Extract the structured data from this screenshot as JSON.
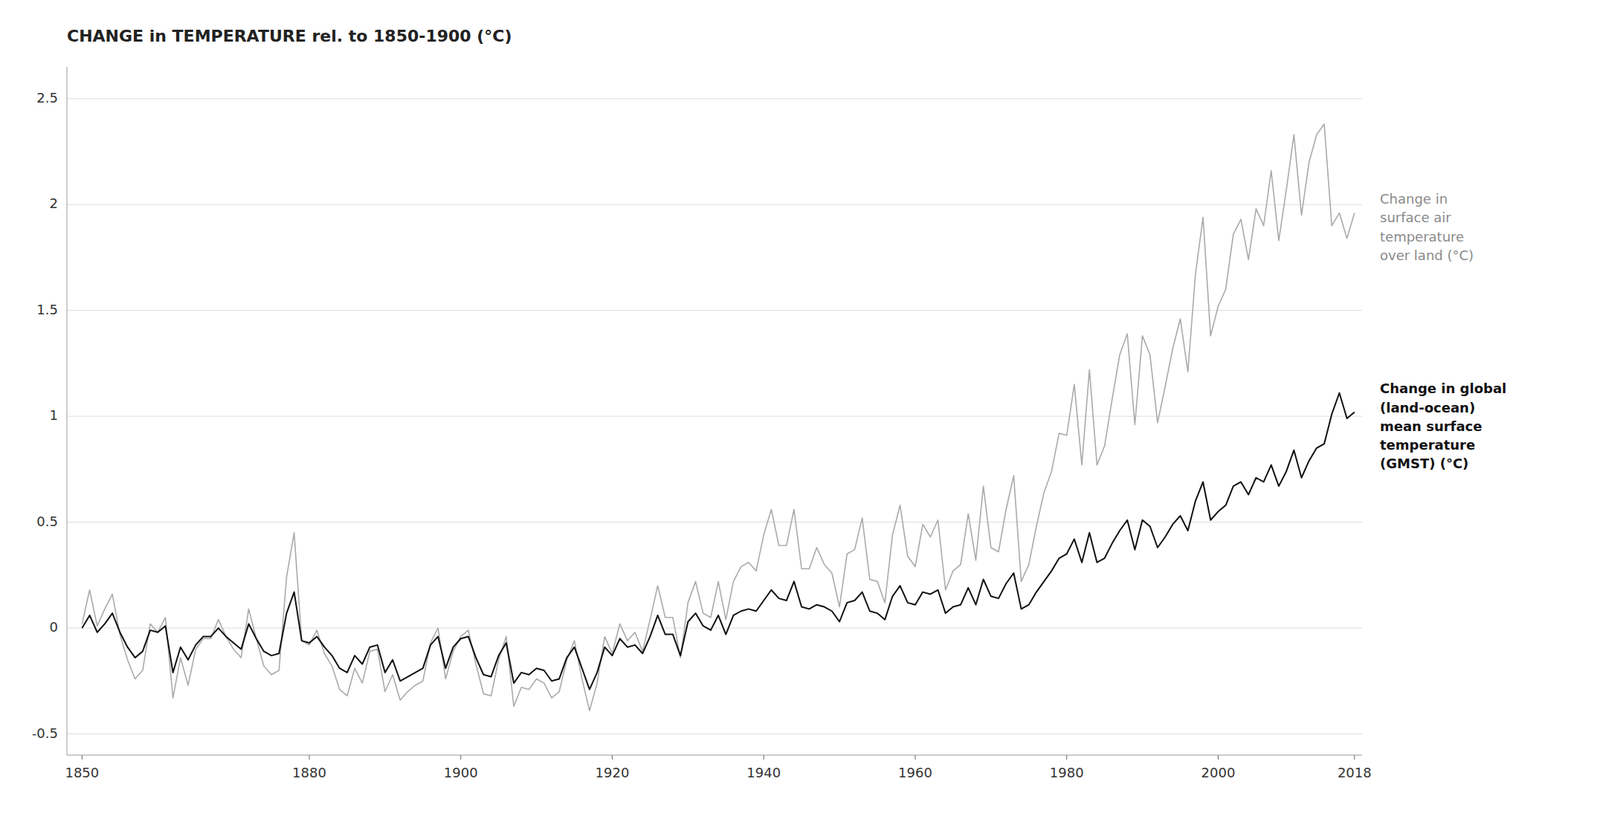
{
  "chart_data": {
    "type": "line",
    "title": "CHANGE in TEMPERATURE rel. to 1850-1900 (°C)",
    "x": [
      1850,
      1851,
      1852,
      1853,
      1854,
      1855,
      1856,
      1857,
      1858,
      1859,
      1860,
      1861,
      1862,
      1863,
      1864,
      1865,
      1866,
      1867,
      1868,
      1869,
      1870,
      1871,
      1872,
      1873,
      1874,
      1875,
      1876,
      1877,
      1878,
      1879,
      1880,
      1881,
      1882,
      1883,
      1884,
      1885,
      1886,
      1887,
      1888,
      1889,
      1890,
      1891,
      1892,
      1893,
      1894,
      1895,
      1896,
      1897,
      1898,
      1899,
      1900,
      1901,
      1902,
      1903,
      1904,
      1905,
      1906,
      1907,
      1908,
      1909,
      1910,
      1911,
      1912,
      1913,
      1914,
      1915,
      1916,
      1917,
      1918,
      1919,
      1920,
      1921,
      1922,
      1923,
      1924,
      1925,
      1926,
      1927,
      1928,
      1929,
      1930,
      1931,
      1932,
      1933,
      1934,
      1935,
      1936,
      1937,
      1938,
      1939,
      1940,
      1941,
      1942,
      1943,
      1944,
      1945,
      1946,
      1947,
      1948,
      1949,
      1950,
      1951,
      1952,
      1953,
      1954,
      1955,
      1956,
      1957,
      1958,
      1959,
      1960,
      1961,
      1962,
      1963,
      1964,
      1965,
      1966,
      1967,
      1968,
      1969,
      1970,
      1971,
      1972,
      1973,
      1974,
      1975,
      1976,
      1977,
      1978,
      1979,
      1980,
      1981,
      1982,
      1983,
      1984,
      1985,
      1986,
      1987,
      1988,
      1989,
      1990,
      1991,
      1992,
      1993,
      1994,
      1995,
      1996,
      1997,
      1998,
      1999,
      2000,
      2001,
      2002,
      2003,
      2004,
      2005,
      2006,
      2007,
      2008,
      2009,
      2010,
      2011,
      2012,
      2013,
      2014,
      2015,
      2016,
      2017,
      2018
    ],
    "series": [
      {
        "name": "Change in\nsurface air\ntemperature\nover land (°C)",
        "color": "#aaaaaa",
        "values": [
          0.02,
          0.18,
          0.01,
          0.09,
          0.16,
          -0.03,
          -0.15,
          -0.24,
          -0.2,
          0.02,
          -0.02,
          0.05,
          -0.33,
          -0.14,
          -0.27,
          -0.1,
          -0.05,
          -0.05,
          0.04,
          -0.04,
          -0.1,
          -0.14,
          0.09,
          -0.05,
          -0.18,
          -0.22,
          -0.2,
          0.24,
          0.45,
          -0.06,
          -0.08,
          -0.01,
          -0.12,
          -0.18,
          -0.29,
          -0.32,
          -0.19,
          -0.26,
          -0.11,
          -0.1,
          -0.3,
          -0.22,
          -0.34,
          -0.3,
          -0.27,
          -0.25,
          -0.07,
          0.0,
          -0.24,
          -0.11,
          -0.04,
          -0.01,
          -0.17,
          -0.31,
          -0.32,
          -0.15,
          -0.04,
          -0.37,
          -0.28,
          -0.29,
          -0.24,
          -0.26,
          -0.33,
          -0.3,
          -0.15,
          -0.06,
          -0.24,
          -0.39,
          -0.26,
          -0.04,
          -0.12,
          0.02,
          -0.06,
          -0.02,
          -0.11,
          0.04,
          0.2,
          0.05,
          0.05,
          -0.14,
          0.12,
          0.22,
          0.07,
          0.05,
          0.22,
          0.04,
          0.22,
          0.29,
          0.31,
          0.27,
          0.44,
          0.56,
          0.39,
          0.39,
          0.56,
          0.28,
          0.28,
          0.38,
          0.3,
          0.26,
          0.1,
          0.35,
          0.37,
          0.52,
          0.23,
          0.22,
          0.12,
          0.44,
          0.58,
          0.34,
          0.29,
          0.49,
          0.43,
          0.51,
          0.18,
          0.27,
          0.3,
          0.54,
          0.32,
          0.67,
          0.38,
          0.36,
          0.56,
          0.72,
          0.22,
          0.3,
          0.48,
          0.64,
          0.74,
          0.92,
          0.91,
          1.15,
          0.77,
          1.22,
          0.77,
          0.86,
          1.08,
          1.29,
          1.39,
          0.96,
          1.38,
          1.29,
          0.97,
          1.14,
          1.32,
          1.46,
          1.21,
          1.67,
          1.94,
          1.38,
          1.52,
          1.6,
          1.86,
          1.93,
          1.74,
          1.98,
          1.9,
          2.16,
          1.83,
          2.07,
          2.33,
          1.95,
          2.2,
          2.33,
          2.38,
          1.9,
          1.96,
          1.84,
          1.96
        ]
      },
      {
        "name": "Change in global\n(land-ocean)\nmean surface\ntemperature\n(GMST) (°C)",
        "color": "#111111",
        "values": [
          0.0,
          0.06,
          -0.02,
          0.02,
          0.07,
          -0.02,
          -0.09,
          -0.14,
          -0.11,
          -0.01,
          -0.02,
          0.01,
          -0.21,
          -0.09,
          -0.15,
          -0.08,
          -0.04,
          -0.04,
          0.0,
          -0.04,
          -0.07,
          -0.1,
          0.02,
          -0.05,
          -0.11,
          -0.13,
          -0.12,
          0.07,
          0.17,
          -0.06,
          -0.07,
          -0.04,
          -0.09,
          -0.13,
          -0.19,
          -0.21,
          -0.13,
          -0.17,
          -0.09,
          -0.08,
          -0.21,
          -0.15,
          -0.25,
          -0.23,
          -0.21,
          -0.19,
          -0.08,
          -0.04,
          -0.19,
          -0.09,
          -0.05,
          -0.04,
          -0.14,
          -0.22,
          -0.23,
          -0.13,
          -0.07,
          -0.26,
          -0.21,
          -0.22,
          -0.19,
          -0.2,
          -0.25,
          -0.24,
          -0.14,
          -0.09,
          -0.19,
          -0.29,
          -0.21,
          -0.09,
          -0.13,
          -0.05,
          -0.09,
          -0.08,
          -0.12,
          -0.04,
          0.06,
          -0.03,
          -0.03,
          -0.13,
          0.03,
          0.07,
          0.01,
          -0.01,
          0.06,
          -0.03,
          0.06,
          0.08,
          0.09,
          0.08,
          0.13,
          0.18,
          0.14,
          0.13,
          0.22,
          0.1,
          0.09,
          0.11,
          0.1,
          0.08,
          0.03,
          0.12,
          0.13,
          0.17,
          0.08,
          0.07,
          0.04,
          0.15,
          0.2,
          0.12,
          0.11,
          0.17,
          0.16,
          0.18,
          0.07,
          0.1,
          0.11,
          0.19,
          0.11,
          0.23,
          0.15,
          0.14,
          0.21,
          0.26,
          0.09,
          0.11,
          0.17,
          0.22,
          0.27,
          0.33,
          0.35,
          0.42,
          0.31,
          0.45,
          0.31,
          0.33,
          0.4,
          0.46,
          0.51,
          0.37,
          0.51,
          0.48,
          0.38,
          0.43,
          0.49,
          0.53,
          0.46,
          0.6,
          0.69,
          0.51,
          0.55,
          0.58,
          0.67,
          0.69,
          0.63,
          0.71,
          0.69,
          0.77,
          0.67,
          0.74,
          0.84,
          0.71,
          0.79,
          0.85,
          0.87,
          1.01,
          1.11,
          0.99,
          1.02
        ]
      }
    ],
    "xlim": [
      1848,
      2019
    ],
    "ylim": [
      -0.6,
      2.65
    ],
    "xticks": [
      1850,
      1880,
      1900,
      1920,
      1940,
      1960,
      1980,
      2000,
      2018
    ],
    "yticks": [
      -0.5,
      0,
      0.5,
      1,
      1.5,
      2,
      2.5
    ],
    "grid": true
  }
}
